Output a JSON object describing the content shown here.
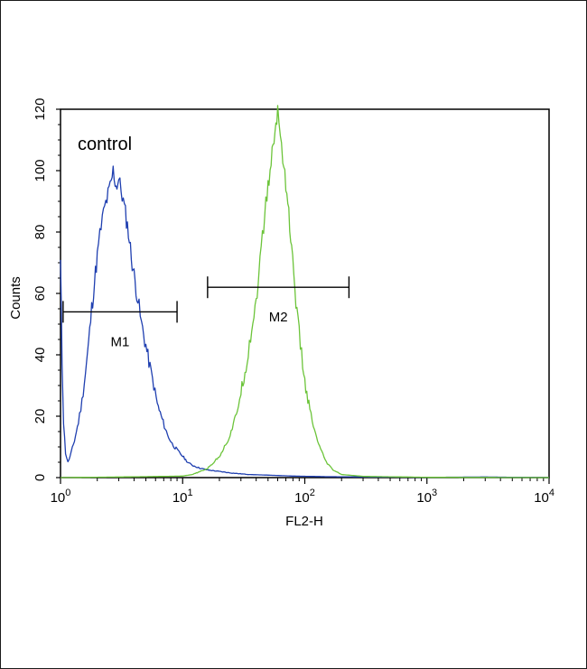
{
  "chart_data": {
    "type": "line",
    "xlabel": "FL2-H",
    "ylabel": "Counts",
    "annotation": "control",
    "x_scale": "log",
    "xlim": [
      1,
      10000
    ],
    "ylim": [
      0,
      120
    ],
    "y_ticks": [
      "0",
      "20",
      "40",
      "60",
      "80",
      "100",
      "120"
    ],
    "x_ticks": [
      {
        "value": 1,
        "base": "10",
        "exp": "0"
      },
      {
        "value": 10,
        "base": "10",
        "exp": "1"
      },
      {
        "value": 100,
        "base": "10",
        "exp": "2"
      },
      {
        "value": 1000,
        "base": "10",
        "exp": "3"
      },
      {
        "value": 10000,
        "base": "10",
        "exp": "4"
      }
    ],
    "markers": [
      {
        "label": "M1",
        "x_start": 1.05,
        "x_end": 9.0,
        "y": 54
      },
      {
        "label": "M2",
        "x_start": 16,
        "x_end": 230,
        "y": 62
      }
    ],
    "series": [
      {
        "color": "#1f3fb0",
        "points": [
          [
            1.0,
            70
          ],
          [
            1.03,
            38
          ],
          [
            1.06,
            18
          ],
          [
            1.1,
            8
          ],
          [
            1.15,
            5
          ],
          [
            1.2,
            7
          ],
          [
            1.3,
            12
          ],
          [
            1.4,
            18
          ],
          [
            1.5,
            25
          ],
          [
            1.6,
            34
          ],
          [
            1.7,
            44
          ],
          [
            1.8,
            55
          ],
          [
            1.9,
            64
          ],
          [
            2.0,
            72
          ],
          [
            2.1,
            79
          ],
          [
            2.2,
            84
          ],
          [
            2.3,
            88
          ],
          [
            2.45,
            92
          ],
          [
            2.6,
            96
          ],
          [
            2.7,
            100
          ],
          [
            2.85,
            95
          ],
          [
            3.0,
            97
          ],
          [
            3.2,
            92
          ],
          [
            3.4,
            86
          ],
          [
            3.6,
            80
          ],
          [
            3.8,
            72
          ],
          [
            4.0,
            66
          ],
          [
            4.3,
            58
          ],
          [
            4.6,
            50
          ],
          [
            5.0,
            43
          ],
          [
            5.4,
            36
          ],
          [
            5.8,
            30
          ],
          [
            6.2,
            24
          ],
          [
            6.8,
            19
          ],
          [
            7.5,
            14
          ],
          [
            8.2,
            11
          ],
          [
            9.0,
            9
          ],
          [
            10.0,
            7
          ],
          [
            11,
            5
          ],
          [
            12,
            4
          ],
          [
            14,
            3
          ],
          [
            16,
            2.5
          ],
          [
            20,
            2
          ],
          [
            25,
            1.5
          ],
          [
            35,
            1
          ],
          [
            50,
            0.8
          ],
          [
            80,
            0.5
          ],
          [
            150,
            0.3
          ],
          [
            400,
            0.2
          ],
          [
            1000,
            0.1
          ],
          [
            3000,
            0.2
          ],
          [
            10000,
            0
          ]
        ]
      },
      {
        "color": "#6cc43a",
        "points": [
          [
            1.0,
            0
          ],
          [
            5,
            0.3
          ],
          [
            10,
            0.5
          ],
          [
            12,
            1
          ],
          [
            14,
            2
          ],
          [
            16,
            3
          ],
          [
            18,
            5
          ],
          [
            20,
            7
          ],
          [
            22,
            10
          ],
          [
            24,
            13
          ],
          [
            26,
            17
          ],
          [
            28,
            22
          ],
          [
            30,
            28
          ],
          [
            33,
            36
          ],
          [
            36,
            46
          ],
          [
            40,
            58
          ],
          [
            43,
            70
          ],
          [
            46,
            82
          ],
          [
            49,
            92
          ],
          [
            52,
            100
          ],
          [
            55,
            108
          ],
          [
            58,
            114
          ],
          [
            60,
            120
          ],
          [
            63,
            112
          ],
          [
            66,
            105
          ],
          [
            70,
            96
          ],
          [
            74,
            86
          ],
          [
            78,
            74
          ],
          [
            83,
            62
          ],
          [
            88,
            50
          ],
          [
            94,
            40
          ],
          [
            100,
            31
          ],
          [
            110,
            22
          ],
          [
            120,
            15
          ],
          [
            135,
            9
          ],
          [
            150,
            5
          ],
          [
            170,
            2.5
          ],
          [
            200,
            1
          ],
          [
            300,
            0.4
          ],
          [
            1000,
            0.1
          ],
          [
            10000,
            0
          ]
        ]
      }
    ]
  }
}
